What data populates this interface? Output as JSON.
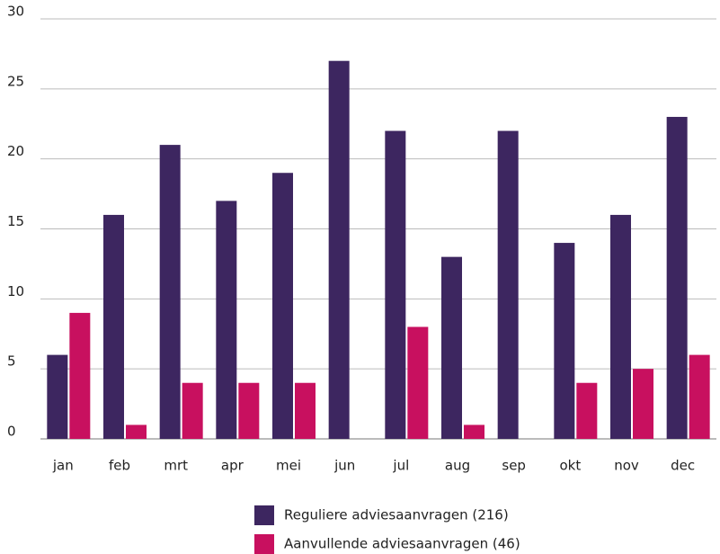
{
  "chart_data": {
    "type": "bar",
    "categories": [
      "jan",
      "feb",
      "mrt",
      "apr",
      "mei",
      "jun",
      "jul",
      "aug",
      "sep",
      "okt",
      "nov",
      "dec"
    ],
    "series": [
      {
        "name": "Reguliere adviesaanvragen (216)",
        "color": "#3d2660",
        "values": [
          6,
          16,
          21,
          17,
          19,
          27,
          22,
          13,
          22,
          14,
          16,
          23
        ]
      },
      {
        "name": "Aanvullende adviesaanvragen (46)",
        "color": "#c8105f",
        "values": [
          9,
          1,
          4,
          4,
          4,
          0,
          8,
          1,
          0,
          4,
          5,
          6
        ]
      }
    ],
    "ylim": [
      0,
      30
    ],
    "yticks": [
      0,
      5,
      10,
      15,
      20,
      25,
      30
    ],
    "grid": true
  }
}
